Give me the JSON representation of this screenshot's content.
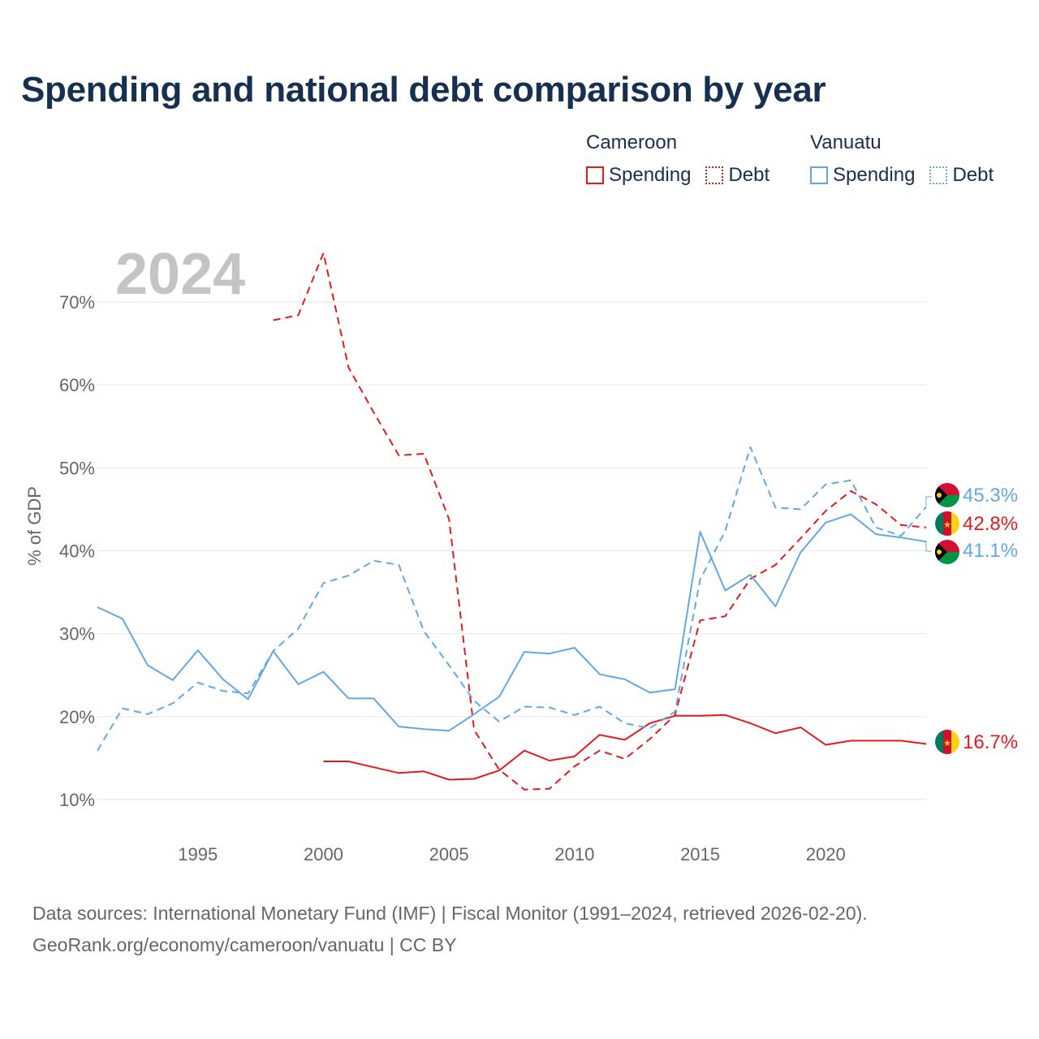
{
  "title": "Spending and national debt comparison by year",
  "legend": {
    "groups": [
      {
        "country": "Cameroon",
        "spending_label": "Spending",
        "debt_label": "Debt",
        "color": "#e31b1b"
      },
      {
        "country": "Vanuatu",
        "spending_label": "Spending",
        "debt_label": "Debt",
        "color": "#62a8e5"
      }
    ]
  },
  "chart_data": {
    "type": "line",
    "year_label": "2024",
    "ylabel": "% of GDP",
    "xlim": [
      1991,
      2024
    ],
    "ylim": [
      5,
      78
    ],
    "y_ticks": [
      10,
      20,
      30,
      40,
      50,
      60,
      70
    ],
    "y_tick_labels": [
      "10%",
      "20%",
      "30%",
      "40%",
      "50%",
      "60%",
      "70%"
    ],
    "x_ticks": [
      1995,
      2000,
      2005,
      2010,
      2015,
      2020
    ],
    "x_tick_labels": [
      "1995",
      "2000",
      "2005",
      "2010",
      "2015",
      "2020"
    ],
    "series": [
      {
        "name": "Cameroon Spending",
        "country": "Cameroon",
        "kind": "spending",
        "color": "#e31b1b",
        "dashed": false,
        "x": [
          2000,
          2001,
          2002,
          2003,
          2004,
          2005,
          2006,
          2007,
          2008,
          2009,
          2010,
          2011,
          2012,
          2013,
          2014,
          2015,
          2016,
          2017,
          2018,
          2019,
          2020,
          2021,
          2022,
          2023,
          2024
        ],
        "values": [
          14.6,
          14.6,
          13.9,
          13.2,
          13.4,
          12.4,
          12.5,
          13.5,
          15.9,
          14.7,
          15.2,
          17.8,
          17.2,
          19.2,
          20.1,
          20.1,
          20.2,
          19.2,
          18.0,
          18.7,
          16.6,
          17.1,
          17.1,
          17.1,
          16.7
        ],
        "end_label": "16.7%"
      },
      {
        "name": "Cameroon Debt",
        "country": "Cameroon",
        "kind": "debt",
        "color": "#e31b1b",
        "dashed": true,
        "x": [
          1998,
          1999,
          2000,
          2001,
          2002,
          2003,
          2004,
          2005,
          2006,
          2007,
          2008,
          2009,
          2010,
          2011,
          2012,
          2013,
          2014,
          2015,
          2016,
          2017,
          2018,
          2019,
          2020,
          2021,
          2022,
          2023,
          2024
        ],
        "values": [
          67.8,
          68.4,
          75.9,
          62.1,
          56.7,
          51.5,
          51.7,
          43.8,
          18.4,
          13.6,
          11.2,
          11.3,
          14.0,
          15.9,
          14.9,
          17.3,
          20.2,
          31.6,
          32.1,
          36.6,
          38.3,
          41.5,
          44.8,
          47.2,
          45.6,
          43.1,
          42.8
        ],
        "end_label": "42.8%"
      },
      {
        "name": "Vanuatu Spending",
        "country": "Vanuatu",
        "kind": "spending",
        "color": "#62a8e5",
        "dashed": false,
        "x": [
          1991,
          1992,
          1993,
          1994,
          1995,
          1996,
          1997,
          1998,
          1999,
          2000,
          2001,
          2002,
          2003,
          2004,
          2005,
          2006,
          2007,
          2008,
          2009,
          2010,
          2011,
          2012,
          2013,
          2014,
          2015,
          2016,
          2017,
          2018,
          2019,
          2020,
          2021,
          2022,
          2023,
          2024
        ],
        "values": [
          33.2,
          31.8,
          26.2,
          24.4,
          28.0,
          24.5,
          22.1,
          27.9,
          23.9,
          25.4,
          22.2,
          22.2,
          18.8,
          18.5,
          18.3,
          20.3,
          22.4,
          27.8,
          27.6,
          28.3,
          25.1,
          24.5,
          22.9,
          23.3,
          42.3,
          35.2,
          37.1,
          33.3,
          39.8,
          43.4,
          44.4,
          42.0,
          41.6,
          41.1
        ],
        "end_label": "41.1%"
      },
      {
        "name": "Vanuatu Debt",
        "country": "Vanuatu",
        "kind": "debt",
        "color": "#62a8e5",
        "dashed": true,
        "x": [
          1991,
          1992,
          1993,
          1994,
          1995,
          1996,
          1997,
          1998,
          1999,
          2000,
          2001,
          2002,
          2003,
          2004,
          2005,
          2006,
          2007,
          2008,
          2009,
          2010,
          2011,
          2012,
          2013,
          2014,
          2015,
          2016,
          2017,
          2018,
          2019,
          2020,
          2021,
          2022,
          2023,
          2024
        ],
        "values": [
          15.9,
          21.0,
          20.3,
          21.6,
          24.1,
          23.1,
          22.8,
          27.9,
          30.6,
          36.1,
          37.0,
          38.8,
          38.3,
          30.3,
          26.2,
          21.9,
          19.4,
          21.2,
          21.1,
          20.2,
          21.2,
          19.2,
          18.6,
          20.6,
          36.5,
          42.4,
          52.5,
          45.2,
          45.0,
          48.0,
          48.5,
          42.8,
          41.8,
          45.3
        ],
        "end_label": "45.3%"
      }
    ]
  },
  "sources": {
    "line1": "Data sources: International Monetary Fund (IMF) | Fiscal Monitor (1991–2024, retrieved 2026-02-20).",
    "line2": "GeoRank.org/economy/cameroon/vanuatu | CC BY"
  }
}
